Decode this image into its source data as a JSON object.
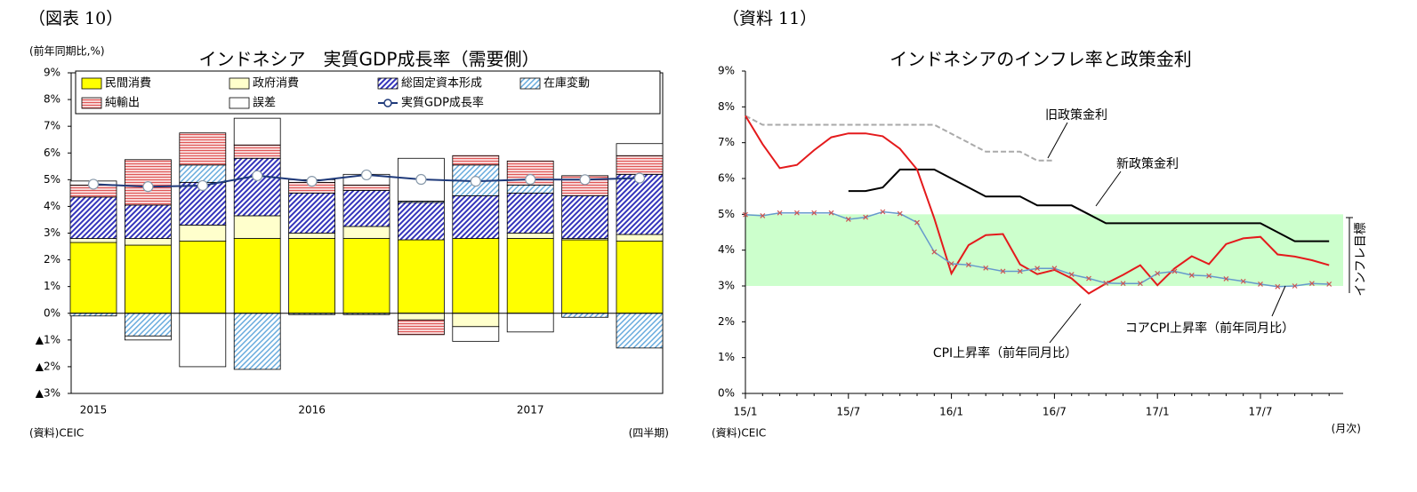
{
  "chart_data": [
    {
      "type": "stacked_bar",
      "figure_label": "（図表 10）",
      "unit_label": "(前年同期比,%)",
      "title": "インドネシア　実質GDP成長率（需要側）",
      "x_unit": "(四半期)",
      "source": "(資料)CEIC",
      "categories": [
        "2015",
        null,
        null,
        null,
        "2016",
        null,
        null,
        null,
        "2017",
        null,
        null
      ],
      "ylim": [
        -3,
        9
      ],
      "yticks": [
        {
          "value": 9,
          "label": "9%"
        },
        {
          "value": 8,
          "label": "8%"
        },
        {
          "value": 7,
          "label": "7%"
        },
        {
          "value": 6,
          "label": "6%"
        },
        {
          "value": 5,
          "label": "5%"
        },
        {
          "value": 4,
          "label": "4%"
        },
        {
          "value": 3,
          "label": "3%"
        },
        {
          "value": 2,
          "label": "2%"
        },
        {
          "value": 1,
          "label": "1%"
        },
        {
          "value": 0,
          "label": "0%"
        },
        {
          "value": -1,
          "label": "▲1%"
        },
        {
          "value": -2,
          "label": "▲2%"
        },
        {
          "value": -3,
          "label": "▲3%"
        }
      ],
      "series": [
        {
          "name": "民間消費",
          "color": "#ffff00",
          "pattern": "solid",
          "values": [
            2.65,
            2.55,
            2.7,
            2.8,
            2.8,
            2.8,
            2.75,
            2.8,
            2.8,
            2.75,
            2.7
          ]
        },
        {
          "name": "政府消費",
          "color": "#ffffcc",
          "pattern": "solid",
          "values": [
            0.15,
            0.25,
            0.6,
            0.85,
            0.2,
            0.45,
            -0.25,
            -0.5,
            0.2,
            0.05,
            0.25
          ]
        },
        {
          "name": "総固定資本形成",
          "color": "#3333bb",
          "pattern": "diagonal",
          "values": [
            1.55,
            1.25,
            1.6,
            2.15,
            1.5,
            1.35,
            1.4,
            1.6,
            1.5,
            1.6,
            2.25
          ]
        },
        {
          "name": "在庫変動",
          "color": "#66aadd",
          "pattern": "diagonal-light",
          "values": [
            -0.1,
            -0.85,
            0.65,
            -2.1,
            -0.05,
            -0.05,
            0.05,
            1.15,
            0.3,
            -0.15,
            -1.3
          ]
        },
        {
          "name": "純輸出",
          "color": "#e05555",
          "pattern": "horizontal",
          "values": [
            0.45,
            1.7,
            1.2,
            0.5,
            0.4,
            0.2,
            -0.55,
            0.35,
            0.9,
            0.75,
            0.7
          ]
        },
        {
          "name": "誤差",
          "color": "#ffffff",
          "pattern": "solid",
          "values": [
            0.15,
            -0.15,
            -2.0,
            1.0,
            0.1,
            0.4,
            1.6,
            -0.55,
            -0.7,
            0,
            0.45
          ]
        },
        {
          "name": "実質GDP成長率",
          "color": "#1f3a7a",
          "type": "line",
          "values": [
            4.83,
            4.74,
            4.78,
            5.15,
            4.94,
            5.18,
            5.01,
            4.94,
            5.01,
            5.0,
            5.06
          ]
        }
      ]
    },
    {
      "type": "line",
      "figure_label": "（資料 11）",
      "title": "インドネシアのインフレ率と政策金利",
      "x_unit": "(月次)",
      "source": "(資料)CEIC",
      "categories": [
        "15/1",
        null,
        null,
        null,
        null,
        null,
        "15/7",
        null,
        null,
        null,
        null,
        null,
        "16/1",
        null,
        null,
        null,
        null,
        null,
        "16/7",
        null,
        null,
        null,
        null,
        null,
        "17/1",
        null,
        null,
        null,
        null,
        null,
        "17/7",
        null,
        null,
        null,
        null
      ],
      "ylim": [
        0,
        9
      ],
      "yticks": [
        {
          "value": 0,
          "label": "0%"
        },
        {
          "value": 1,
          "label": "1%"
        },
        {
          "value": 2,
          "label": "2%"
        },
        {
          "value": 3,
          "label": "3%"
        },
        {
          "value": 4,
          "label": "4%"
        },
        {
          "value": 5,
          "label": "5%"
        },
        {
          "value": 6,
          "label": "6%"
        },
        {
          "value": 7,
          "label": "7%"
        },
        {
          "value": 8,
          "label": "8%"
        },
        {
          "value": 9,
          "label": "9%"
        }
      ],
      "target_band": {
        "range": [
          3,
          5
        ],
        "color": "#ccffcc",
        "label": "インフレ目標"
      },
      "series": [
        {
          "name": "旧政策金利",
          "color": "#aaaaaa",
          "dash": true,
          "values": [
            7.75,
            7.5,
            7.5,
            7.5,
            7.5,
            7.5,
            7.5,
            7.5,
            7.5,
            7.5,
            7.5,
            7.5,
            7.25,
            7.0,
            6.75,
            6.75,
            6.75,
            6.5,
            6.5,
            null,
            null,
            null,
            null,
            null,
            null,
            null,
            null,
            null,
            null,
            null,
            null,
            null,
            null,
            null,
            null
          ]
        },
        {
          "name": "新政策金利",
          "color": "#000000",
          "values": [
            null,
            null,
            null,
            null,
            null,
            null,
            5.65,
            5.65,
            5.75,
            6.25,
            6.25,
            6.25,
            6.0,
            5.75,
            5.5,
            5.5,
            5.5,
            5.25,
            5.25,
            5.25,
            5.0,
            4.75,
            4.75,
            4.75,
            4.75,
            4.75,
            4.75,
            4.75,
            4.75,
            4.75,
            4.75,
            4.5,
            4.25,
            4.25,
            4.25
          ]
        },
        {
          "name": "CPI上昇率（前年同月比）",
          "color": "#e41a1c",
          "values": [
            7.75,
            6.96,
            6.29,
            6.38,
            6.79,
            7.15,
            7.26,
            7.26,
            7.18,
            6.83,
            6.25,
            4.89,
            3.35,
            4.14,
            4.42,
            4.45,
            3.6,
            3.33,
            3.45,
            3.21,
            2.79,
            3.07,
            3.31,
            3.58,
            3.02,
            3.49,
            3.83,
            3.61,
            4.17,
            4.33,
            4.37,
            3.88,
            3.82,
            3.72,
            3.58
          ]
        },
        {
          "name": "コアCPI上昇率（前年同月比）",
          "color": "#6699cc",
          "marker": "x",
          "marker_color": "#cc5555",
          "values": [
            4.99,
            4.96,
            5.04,
            5.04,
            5.04,
            5.04,
            4.86,
            4.92,
            5.07,
            5.02,
            4.77,
            3.95,
            3.62,
            3.59,
            3.5,
            3.41,
            3.41,
            3.49,
            3.49,
            3.32,
            3.21,
            3.08,
            3.07,
            3.07,
            3.35,
            3.41,
            3.3,
            3.28,
            3.2,
            3.13,
            3.05,
            2.98,
            3.0,
            3.07,
            3.05
          ]
        }
      ]
    }
  ]
}
